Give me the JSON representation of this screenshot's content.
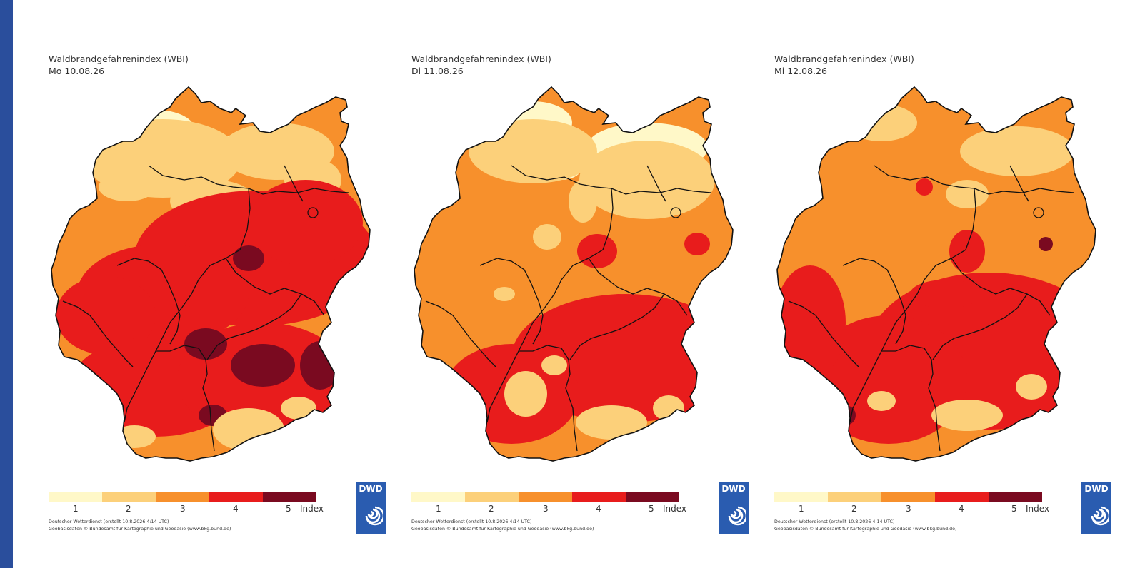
{
  "panels": [
    {
      "title": "Waldbrandgefahrenindex (WBI)",
      "date": "Mo 10.08.26",
      "scenario": "hot"
    },
    {
      "title": "Waldbrandgefahrenindex (WBI)",
      "date": "Di 11.08.26",
      "scenario": "cool"
    },
    {
      "title": "Waldbrandgefahrenindex (WBI)",
      "date": "Mi 12.08.26",
      "scenario": "warm"
    }
  ],
  "legend": {
    "labels": [
      "1",
      "2",
      "3",
      "4",
      "5"
    ],
    "unit": "Index",
    "colors": [
      "#fff8c8",
      "#fcd07a",
      "#f7902c",
      "#e81c1c",
      "#7a0a20"
    ]
  },
  "credit": {
    "line1": "Deutscher Wetterdienst (erstellt 10.8.2026 4:14 UTC)",
    "line2": "Geobasisdaten © Bundesamt für Kartographie und Geodäsie (www.bkg.bund.de)"
  },
  "logo": {
    "text": "DWD"
  }
}
